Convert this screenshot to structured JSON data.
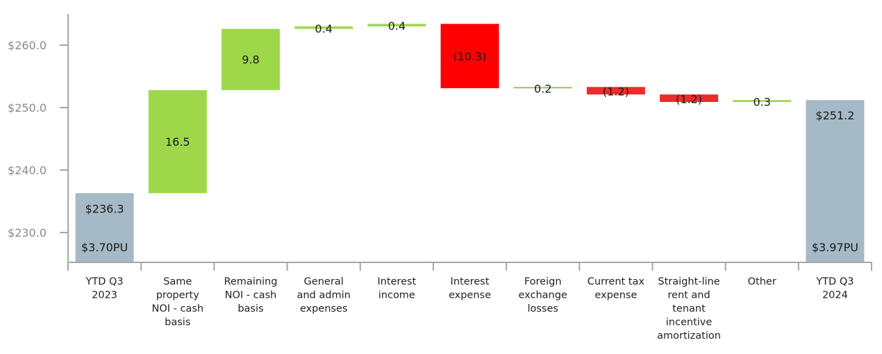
{
  "chart_data": {
    "type": "bar",
    "subtype": "waterfall",
    "title": "",
    "xlabel": "",
    "ylabel": "",
    "ylim": [
      225.2,
      264.6
    ],
    "yticks": [
      230.0,
      240.0,
      250.0,
      260.0
    ],
    "ytick_labels": [
      "$230.0",
      "$240.0",
      "$250.0",
      "$260.0"
    ],
    "grid": false,
    "legend": null,
    "categories": [
      "YTD Q3 2023",
      "Same property NOI - cash basis",
      "Remaining NOI - cash basis",
      "General and admin expenses",
      "Interest income",
      "Interest expense",
      "Foreign exchange losses",
      "Current tax expense",
      "Straight-line rent and tenant incentive amortization",
      "Other",
      "YTD Q3 2024"
    ],
    "category_lines": [
      [
        "YTD Q3",
        "2023"
      ],
      [
        "Same",
        "property",
        "NOI - cash",
        "basis"
      ],
      [
        "Remaining",
        "NOI - cash",
        "basis"
      ],
      [
        "General",
        "and admin",
        "expenses"
      ],
      [
        "Interest",
        "income"
      ],
      [
        "Interest",
        "expense"
      ],
      [
        "Foreign",
        "exchange",
        "losses"
      ],
      [
        "Current tax",
        "expense"
      ],
      [
        "Straight-line",
        "rent and",
        "tenant",
        "incentive",
        "amortization"
      ],
      [
        "Other"
      ],
      [
        "YTD Q3",
        "2024"
      ]
    ],
    "values": [
      236.3,
      16.5,
      9.8,
      0.4,
      0.4,
      -10.3,
      0.2,
      -1.2,
      -1.2,
      0.3,
      251.2
    ],
    "bar_kind": [
      "total",
      "increase",
      "increase",
      "increase",
      "increase",
      "decrease",
      "increase",
      "decrease",
      "decrease",
      "increase",
      "total"
    ],
    "data_labels": [
      "$236.3",
      "16.5",
      "9.8",
      "0.4",
      "0.4",
      "(10.3)",
      "0.2",
      "(1.2)",
      "(1.2)",
      "0.3",
      "$251.2"
    ],
    "secondary_labels": [
      "$3.70PU",
      "",
      "",
      "",
      "",
      "",
      "",
      "",
      "",
      "",
      "$3.97PU"
    ],
    "colors": {
      "total": "#a5b9c6",
      "increase": "#9ed84a",
      "decrease": "#ff0000",
      "axis": "#a6a6a6",
      "tick_label": "#8a8a8a"
    }
  }
}
